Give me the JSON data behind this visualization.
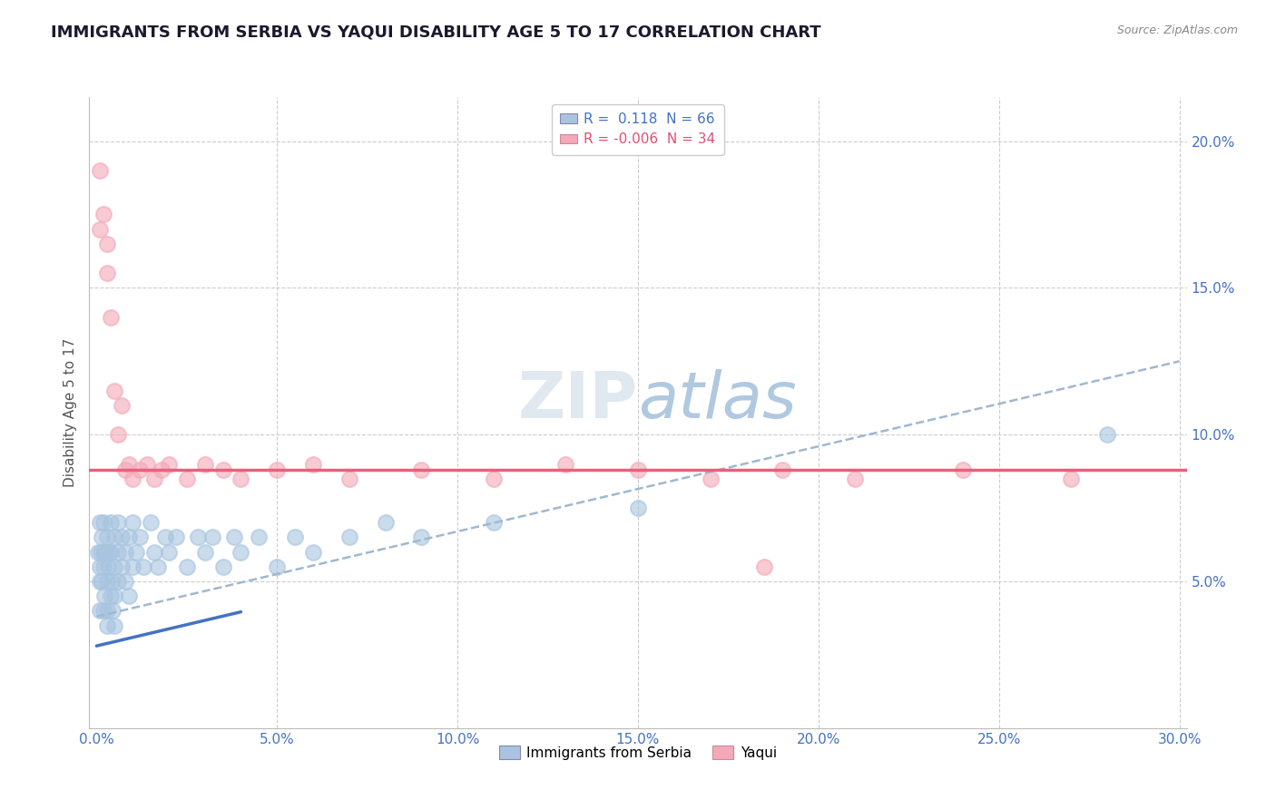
{
  "title": "IMMIGRANTS FROM SERBIA VS YAQUI DISABILITY AGE 5 TO 17 CORRELATION CHART",
  "source": "Source: ZipAtlas.com",
  "ylabel": "Disability Age 5 to 17",
  "xlim": [
    -0.002,
    0.302
  ],
  "ylim": [
    0.0,
    0.215
  ],
  "xticks": [
    0.0,
    0.05,
    0.1,
    0.15,
    0.2,
    0.25,
    0.3
  ],
  "xticklabels": [
    "0.0%",
    "5.0%",
    "10.0%",
    "15.0%",
    "20.0%",
    "25.0%",
    "30.0%"
  ],
  "ytick_positions": [
    0.05,
    0.1,
    0.15,
    0.2
  ],
  "yticklabels": [
    "5.0%",
    "10.0%",
    "15.0%",
    "20.0%"
  ],
  "legend_R1": " 0.118",
  "legend_N1": "66",
  "legend_R2": "-0.006",
  "legend_N2": "34",
  "blue_color": "#a8c4e0",
  "pink_color": "#f4a8b8",
  "blue_line_color": "#4472c4",
  "pink_line_color": "#e8607a",
  "dash_line_color": "#a0b8d0",
  "grid_color": "#cccccc",
  "title_color": "#1a1a2e",
  "source_color": "#888888",
  "watermark_color": "#e0e8f0",
  "serbia_x": [
    0.0005,
    0.0008,
    0.001,
    0.001,
    0.001,
    0.0012,
    0.0015,
    0.0015,
    0.0018,
    0.002,
    0.002,
    0.002,
    0.0022,
    0.0025,
    0.003,
    0.003,
    0.003,
    0.003,
    0.0032,
    0.0035,
    0.004,
    0.004,
    0.004,
    0.0042,
    0.0045,
    0.005,
    0.005,
    0.005,
    0.005,
    0.006,
    0.006,
    0.006,
    0.007,
    0.007,
    0.008,
    0.008,
    0.009,
    0.009,
    0.01,
    0.01,
    0.011,
    0.012,
    0.013,
    0.015,
    0.016,
    0.017,
    0.019,
    0.02,
    0.022,
    0.025,
    0.028,
    0.03,
    0.032,
    0.035,
    0.038,
    0.04,
    0.045,
    0.05,
    0.055,
    0.06,
    0.07,
    0.08,
    0.09,
    0.11,
    0.15,
    0.28
  ],
  "serbia_y": [
    0.06,
    0.05,
    0.055,
    0.04,
    0.07,
    0.06,
    0.05,
    0.065,
    0.055,
    0.04,
    0.06,
    0.07,
    0.045,
    0.06,
    0.035,
    0.05,
    0.065,
    0.04,
    0.055,
    0.06,
    0.045,
    0.06,
    0.07,
    0.05,
    0.04,
    0.055,
    0.045,
    0.065,
    0.035,
    0.06,
    0.05,
    0.07,
    0.055,
    0.065,
    0.05,
    0.06,
    0.045,
    0.065,
    0.055,
    0.07,
    0.06,
    0.065,
    0.055,
    0.07,
    0.06,
    0.055,
    0.065,
    0.06,
    0.065,
    0.055,
    0.065,
    0.06,
    0.065,
    0.055,
    0.065,
    0.06,
    0.065,
    0.055,
    0.065,
    0.06,
    0.065,
    0.07,
    0.065,
    0.07,
    0.075,
    0.1
  ],
  "yaqui_x": [
    0.001,
    0.001,
    0.002,
    0.003,
    0.003,
    0.004,
    0.005,
    0.006,
    0.007,
    0.008,
    0.009,
    0.01,
    0.012,
    0.014,
    0.016,
    0.018,
    0.02,
    0.025,
    0.03,
    0.035,
    0.04,
    0.05,
    0.06,
    0.07,
    0.09,
    0.11,
    0.13,
    0.15,
    0.17,
    0.19,
    0.21,
    0.24,
    0.27,
    0.185
  ],
  "yaqui_y": [
    0.19,
    0.17,
    0.175,
    0.155,
    0.165,
    0.14,
    0.115,
    0.1,
    0.11,
    0.088,
    0.09,
    0.085,
    0.088,
    0.09,
    0.085,
    0.088,
    0.09,
    0.085,
    0.09,
    0.088,
    0.085,
    0.088,
    0.09,
    0.085,
    0.088,
    0.085,
    0.09,
    0.088,
    0.085,
    0.088,
    0.085,
    0.088,
    0.085,
    0.055
  ],
  "blue_trend_x0": 0.0,
  "blue_trend_x1": 0.3,
  "blue_trend_y0": 0.028,
  "blue_trend_y1": 0.115,
  "dash_trend_y0": 0.038,
  "dash_trend_y1": 0.125,
  "pink_trend_y": 0.088
}
